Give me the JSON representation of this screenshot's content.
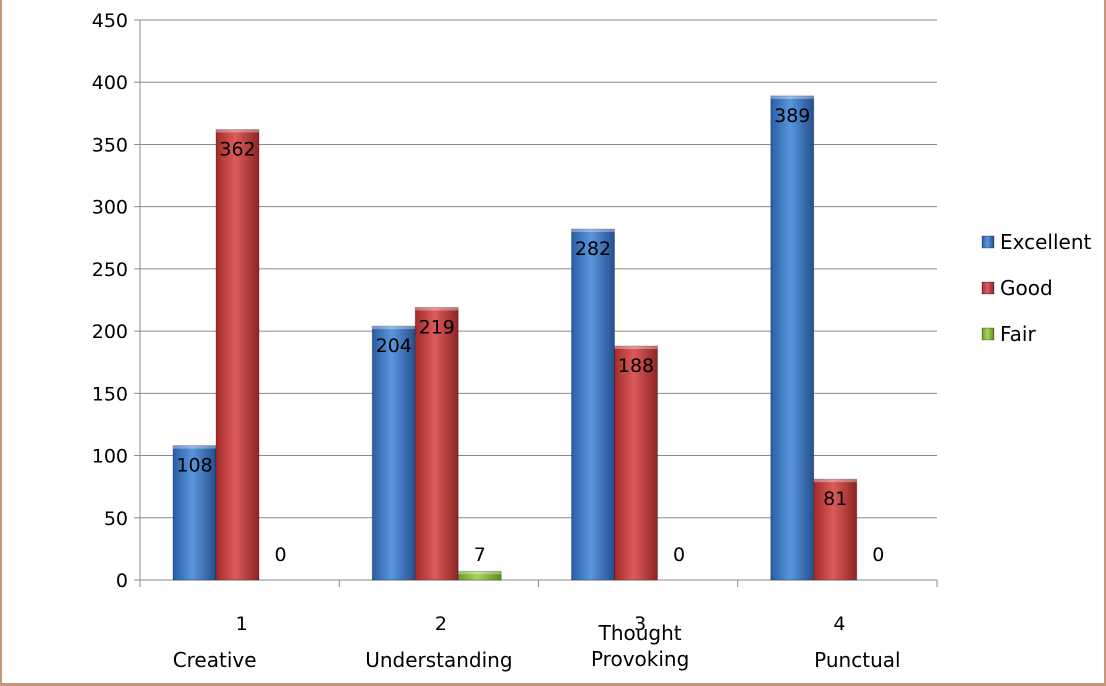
{
  "chart_data": {
    "type": "bar",
    "title": "",
    "xlabel": "",
    "ylabel": "",
    "categories": [
      {
        "number": "1",
        "label": "Creative"
      },
      {
        "number": "2",
        "label": "Understanding"
      },
      {
        "number": "3",
        "label": "Thought Provoking"
      },
      {
        "number": "4",
        "label": "Punctual"
      }
    ],
    "series": [
      {
        "name": "Excellent",
        "color": "#3b78c8",
        "values": [
          108,
          204,
          282,
          389
        ]
      },
      {
        "name": "Good",
        "color": "#c43b3b",
        "values": [
          362,
          219,
          188,
          81
        ]
      },
      {
        "name": "Fair",
        "color": "#8cb83b",
        "values": [
          0,
          7,
          0,
          0
        ]
      }
    ],
    "ylim": [
      0,
      450
    ],
    "yticks": [
      0,
      50,
      100,
      150,
      200,
      250,
      300,
      350,
      400,
      450
    ],
    "grid": true,
    "legend": "right"
  }
}
